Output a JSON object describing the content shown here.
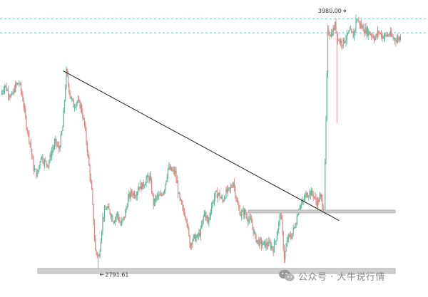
{
  "chart_data": {
    "type": "candlestick",
    "title": "",
    "xlabel": "",
    "ylabel": "",
    "ylim": [
      2760,
      4020
    ],
    "grid": false,
    "up_color": "#5fb89a",
    "down_color": "#e08585",
    "wick_color": "#8a8a8a",
    "annotations": {
      "high_label": "3980.00",
      "low_label": "2791.61",
      "high_value": 3980,
      "low_value": 2791.61
    },
    "resistance_lines": [
      3960,
      3895
    ],
    "support_zones": [
      {
        "from_index": 68,
        "to_index": 110,
        "value": 3072,
        "color": "#cfcfcf"
      },
      {
        "from_index": 10,
        "to_index": 110,
        "value": 2798,
        "color": "#cfcfcf"
      }
    ],
    "trendline": {
      "start": {
        "index": 17,
        "value": 3720
      },
      "end": {
        "index": 93,
        "value": 3030
      }
    },
    "closes": [
      3610,
      3655,
      3620,
      3600,
      3650,
      3665,
      3590,
      3470,
      3390,
      3270,
      3240,
      3330,
      3300,
      3290,
      3350,
      3390,
      3360,
      3460,
      3715,
      3610,
      3560,
      3580,
      3555,
      3470,
      3320,
      3160,
      2890,
      2860,
      3040,
      3090,
      3070,
      3030,
      3060,
      3010,
      3050,
      3130,
      3160,
      3150,
      3190,
      3190,
      3220,
      3230,
      3110,
      3140,
      3140,
      3180,
      3270,
      3260,
      3250,
      3140,
      3080,
      3050,
      2920,
      2950,
      2950,
      2980,
      3070,
      3020,
      3100,
      3150,
      3150,
      3120,
      3160,
      3170,
      3210,
      3110,
      3060,
      3070,
      3040,
      3020,
      2950,
      2930,
      2920,
      2920,
      2920,
      2900,
      2970,
      3070,
      2860,
      2950,
      2960,
      3010,
      3090,
      3110,
      3150,
      3160,
      3150,
      3110,
      3140,
      3080,
      3900,
      3890,
      3930,
      3860,
      3850,
      3870,
      3900,
      3880,
      3960,
      3930,
      3910,
      3900,
      3890,
      3870,
      3900,
      3880,
      3880,
      3890,
      3870,
      3865,
      3875
    ]
  },
  "watermark": {
    "text": "公众号 · 大牛说行情",
    "icon": "wechat-icon"
  }
}
